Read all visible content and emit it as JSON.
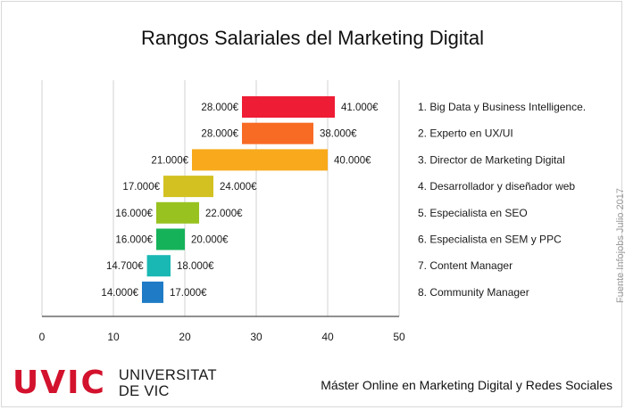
{
  "title": "Rangos Salariales del Marketing Digital",
  "source_note": "Fuente Infojobs Julio 2017",
  "logo": {
    "mark": "UVIC",
    "line1": "UNIVERSITAT",
    "line2": "DE VIC"
  },
  "footer": "Máster Online en Marketing Digital y Redes Sociales",
  "colors": {
    "grid": "#d0d0d0",
    "axis": "#222222",
    "logo": "#d3122d"
  },
  "chart_data": {
    "type": "bar",
    "orientation": "horizontal",
    "style": "floating-range",
    "title": "Rangos Salariales del Marketing Digital",
    "xlim": [
      0,
      50
    ],
    "xticks": [
      0,
      10,
      20,
      30,
      40,
      50
    ],
    "grid": true,
    "categories": [
      "1. Big Data y Business Intelligence.",
      "2. Experto en UX/UI",
      "3. Director de Marketing Digital",
      "4. Desarrollador y diseñador web",
      "5. Especialista en SEO",
      "6. Especialista en SEM y PPC",
      "7. Content Manager",
      "8. Community Manager"
    ],
    "min_values": [
      28.0,
      28.0,
      21.0,
      17.0,
      16.0,
      16.0,
      14.7,
      14.0
    ],
    "max_values": [
      41.0,
      38.0,
      40.0,
      24.0,
      22.0,
      20.0,
      18.0,
      17.0
    ],
    "min_labels": [
      "28.000€",
      "28.000€",
      "21.000€",
      "17.000€",
      "16.000€",
      "16.000€",
      "14.700€",
      "14.000€"
    ],
    "max_labels": [
      "41.000€",
      "38.000€",
      "40.000€",
      "24.000€",
      "22.000€",
      "20.000€",
      "18.000€",
      "17.000€"
    ],
    "bar_colors": [
      "#ee1c34",
      "#f86b25",
      "#f8aa1c",
      "#d3c121",
      "#98c21f",
      "#16b25a",
      "#19b8b4",
      "#1f7bc6"
    ]
  }
}
